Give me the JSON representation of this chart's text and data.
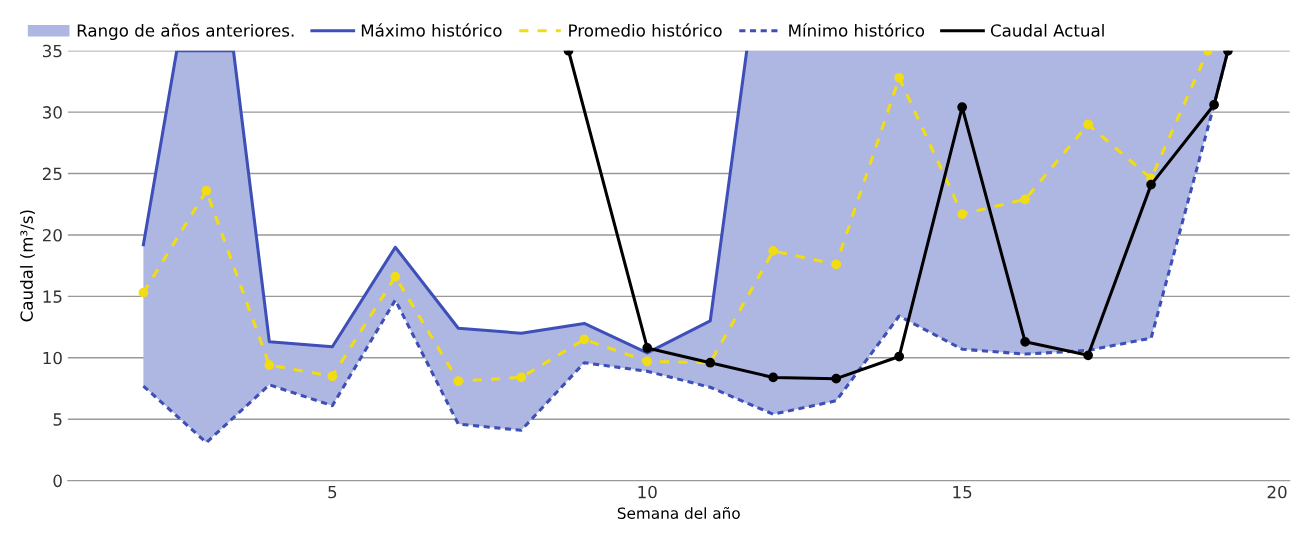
{
  "chart_data": {
    "type": "line",
    "xlabel": "Semana del año",
    "ylabel": "Caudal (m³/s)",
    "xlim": [
      0.8,
      20.2
    ],
    "ylim": [
      0,
      35
    ],
    "xticks": [
      5,
      10,
      15,
      20
    ],
    "yticks": [
      0,
      5,
      10,
      15,
      20,
      25,
      30,
      35
    ],
    "grid": "y",
    "legend": "top left",
    "series": [
      {
        "name": "Rango de años anteriores.",
        "type": "area",
        "color": "#aeb6e2",
        "x": [
          2,
          2.53,
          3,
          3.43,
          4,
          5,
          6,
          7,
          8,
          9,
          10,
          11,
          11.58,
          12,
          13,
          14,
          15,
          16,
          17,
          18,
          19,
          19.22
        ],
        "values": [
          null,
          null,
          null,
          null,
          null,
          null,
          null,
          null,
          null,
          null,
          null,
          null,
          null,
          null,
          null,
          null,
          null,
          null,
          null,
          null,
          null,
          null
        ],
        "upper": [
          19.2,
          35,
          35,
          35,
          11.3,
          10.9,
          19.0,
          12.4,
          12.0,
          12.8,
          10.4,
          13.0,
          35,
          35,
          35,
          35,
          35,
          35,
          35,
          35,
          35,
          35
        ],
        "lower": [
          7.7,
          5.3,
          3.1,
          5.1,
          7.8,
          6.1,
          14.7,
          4.6,
          4.1,
          9.6,
          8.9,
          7.6,
          6.3,
          5.4,
          6.5,
          13.4,
          10.7,
          10.3,
          10.6,
          11.6,
          30.6,
          35
        ]
      },
      {
        "name": "Máximo histórico",
        "color": "#3f4fb8",
        "line_style": "solid",
        "marker": "none",
        "x": [
          2,
          2.53,
          3.43,
          4,
          5,
          6,
          7,
          8,
          9,
          10,
          11,
          11.58
        ],
        "values": [
          19.2,
          35,
          35,
          11.3,
          10.9,
          19.0,
          12.4,
          12.0,
          12.8,
          10.4,
          13.0,
          35
        ]
      },
      {
        "name": "Promedio histórico",
        "color": "#f2dc14",
        "line_style": "dashed",
        "marker": "circle",
        "x": [
          2,
          3,
          4,
          5,
          6,
          7,
          8,
          9,
          10,
          11,
          12,
          13,
          14,
          15,
          16,
          17,
          18,
          18.9
        ],
        "values": [
          15.3,
          23.6,
          9.4,
          8.5,
          16.6,
          8.1,
          8.4,
          11.5,
          9.7,
          9.6,
          18.7,
          17.6,
          32.8,
          21.7,
          22.9,
          29.0,
          24.6,
          35
        ]
      },
      {
        "name": "Mínimo histórico",
        "color": "#3f4fb8",
        "line_style": "dotted",
        "marker": "none",
        "x": [
          2,
          3,
          4,
          5,
          6,
          7,
          8,
          9,
          10,
          11,
          12,
          13,
          14,
          15,
          16,
          17,
          18,
          19,
          19.22
        ],
        "values": [
          7.7,
          3.1,
          7.8,
          6.1,
          14.7,
          4.6,
          4.1,
          9.6,
          8.9,
          7.6,
          5.4,
          6.5,
          13.4,
          10.7,
          10.3,
          10.6,
          11.6,
          30.6,
          35
        ]
      },
      {
        "name": "Caudal Actual",
        "color": "#000000",
        "line_style": "solid",
        "marker": "circle",
        "x": [
          8.75,
          10,
          11,
          12,
          13,
          14,
          15,
          16,
          17,
          18,
          19,
          19.22
        ],
        "values": [
          35,
          10.8,
          9.6,
          8.4,
          8.3,
          10.1,
          30.4,
          11.3,
          10.2,
          24.1,
          30.6,
          35
        ]
      }
    ]
  }
}
